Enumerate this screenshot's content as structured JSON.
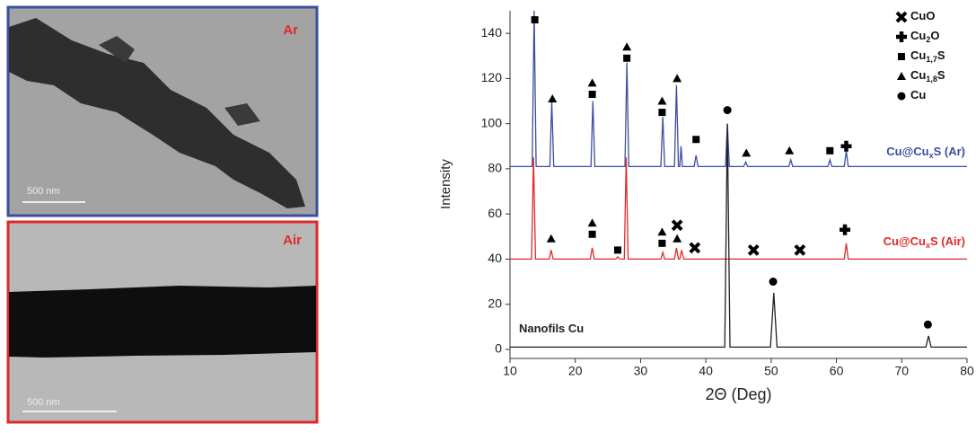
{
  "images": [
    {
      "label": "Ar",
      "scale": "500 nm"
    },
    {
      "label": "Air",
      "scale": "500 nm"
    }
  ],
  "chart_data": {
    "type": "line",
    "x_label": "2Θ (Deg)",
    "y_label": "Intensity",
    "xlim": [
      10,
      80
    ],
    "xticks": [
      10,
      20,
      30,
      40,
      50,
      60,
      70,
      80
    ],
    "ylim": [
      -4,
      150
    ],
    "yticks": [
      0,
      20,
      40,
      60,
      80,
      100,
      120,
      140
    ],
    "series": [
      {
        "name_parts": [
          "Cu@Cu",
          "x",
          "S (Ar)"
        ],
        "color": "#3a4fa0",
        "x": [
          10,
          13.4,
          13.7,
          14,
          16.1,
          16.4,
          16.7,
          20,
          22.4,
          22.7,
          23,
          25,
          27.6,
          27.9,
          28.2,
          30,
          33.1,
          33.4,
          33.7,
          35.2,
          35.5,
          35.8,
          36,
          36.2,
          36.4,
          38.2,
          38.5,
          38.8,
          43,
          43.3,
          43.6,
          45.8,
          46.1,
          46.4,
          52.7,
          53,
          53.3,
          58.7,
          59,
          59.3,
          61.2,
          61.5,
          61.8,
          70,
          80
        ],
        "values": [
          81,
          81,
          150,
          81,
          81,
          110,
          81,
          81,
          81,
          110,
          81,
          81,
          81,
          127,
          81,
          81,
          81,
          103,
          81,
          81,
          117,
          81,
          81,
          90,
          81,
          81,
          86,
          81,
          81,
          100,
          81,
          81,
          83,
          81,
          81,
          84,
          81,
          81,
          84,
          81,
          81,
          88,
          81,
          81,
          81
        ]
      },
      {
        "name_parts": [
          "Cu@Cu",
          "x",
          "S (Air)"
        ],
        "color": "#e0292b",
        "x": [
          10,
          13.3,
          13.6,
          13.9,
          16,
          16.3,
          16.6,
          22.3,
          22.6,
          22.9,
          26.2,
          26.5,
          26.8,
          27.5,
          27.8,
          28.1,
          33.1,
          33.4,
          33.7,
          35.2,
          35.5,
          35.8,
          36,
          36.3,
          36.6,
          61.2,
          61.5,
          61.8,
          70,
          80
        ],
        "values": [
          40,
          40,
          85,
          40,
          40,
          44,
          40,
          40,
          45,
          40,
          40,
          41,
          40,
          40,
          85,
          40,
          40,
          43,
          40,
          40,
          45,
          40,
          40,
          44,
          40,
          40,
          47,
          40,
          40,
          40
        ]
      },
      {
        "name_parts": [
          "Nanofils Cu"
        ],
        "color": "#222222",
        "x": [
          10,
          20,
          30,
          40,
          42.9,
          43.3,
          43.7,
          49.9,
          50.4,
          50.9,
          60,
          73.7,
          74.1,
          74.5,
          80
        ],
        "values": [
          1,
          1,
          1,
          1,
          1,
          100,
          1,
          1,
          25,
          1,
          1,
          1,
          6,
          1,
          1
        ]
      }
    ],
    "legend": [
      {
        "symbol": "cross",
        "name_parts": [
          "CuO"
        ]
      },
      {
        "symbol": "plus",
        "name_parts": [
          "Cu",
          "2",
          "O"
        ]
      },
      {
        "symbol": "square",
        "name_parts": [
          "Cu",
          "1,7",
          "S"
        ]
      },
      {
        "symbol": "triangle",
        "name_parts": [
          "Cu",
          "1,8",
          "S"
        ]
      },
      {
        "symbol": "circle",
        "name_parts": [
          "Cu"
        ]
      }
    ],
    "markers": [
      {
        "symbol": "square",
        "x": 13.8,
        "y": 146
      },
      {
        "symbol": "triangle",
        "x": 16.5,
        "y": 111
      },
      {
        "symbol": "triangle",
        "x": 22.6,
        "y": 118
      },
      {
        "symbol": "square",
        "x": 22.6,
        "y": 113
      },
      {
        "symbol": "triangle",
        "x": 27.9,
        "y": 134
      },
      {
        "symbol": "square",
        "x": 27.9,
        "y": 129
      },
      {
        "symbol": "triangle",
        "x": 33.3,
        "y": 110
      },
      {
        "symbol": "square",
        "x": 33.3,
        "y": 105
      },
      {
        "symbol": "triangle",
        "x": 35.6,
        "y": 120
      },
      {
        "symbol": "square",
        "x": 38.5,
        "y": 93
      },
      {
        "symbol": "circle",
        "x": 43.3,
        "y": 106
      },
      {
        "symbol": "triangle",
        "x": 46.2,
        "y": 87
      },
      {
        "symbol": "triangle",
        "x": 52.8,
        "y": 88
      },
      {
        "symbol": "square",
        "x": 59,
        "y": 88
      },
      {
        "symbol": "plus",
        "x": 61.5,
        "y": 90
      },
      {
        "symbol": "triangle",
        "x": 16.3,
        "y": 49
      },
      {
        "symbol": "triangle",
        "x": 22.6,
        "y": 56
      },
      {
        "symbol": "square",
        "x": 22.6,
        "y": 51
      },
      {
        "symbol": "square",
        "x": 26.5,
        "y": 44
      },
      {
        "symbol": "triangle",
        "x": 33.3,
        "y": 52
      },
      {
        "symbol": "square",
        "x": 33.3,
        "y": 47
      },
      {
        "symbol": "cross",
        "x": 35.6,
        "y": 55
      },
      {
        "symbol": "triangle",
        "x": 35.6,
        "y": 49
      },
      {
        "symbol": "cross",
        "x": 38.3,
        "y": 45
      },
      {
        "symbol": "cross",
        "x": 47.3,
        "y": 44
      },
      {
        "symbol": "cross",
        "x": 54.4,
        "y": 44
      },
      {
        "symbol": "plus",
        "x": 61.3,
        "y": 53
      },
      {
        "symbol": "circle",
        "x": 50.3,
        "y": 30
      },
      {
        "symbol": "circle",
        "x": 74,
        "y": 11
      }
    ]
  }
}
